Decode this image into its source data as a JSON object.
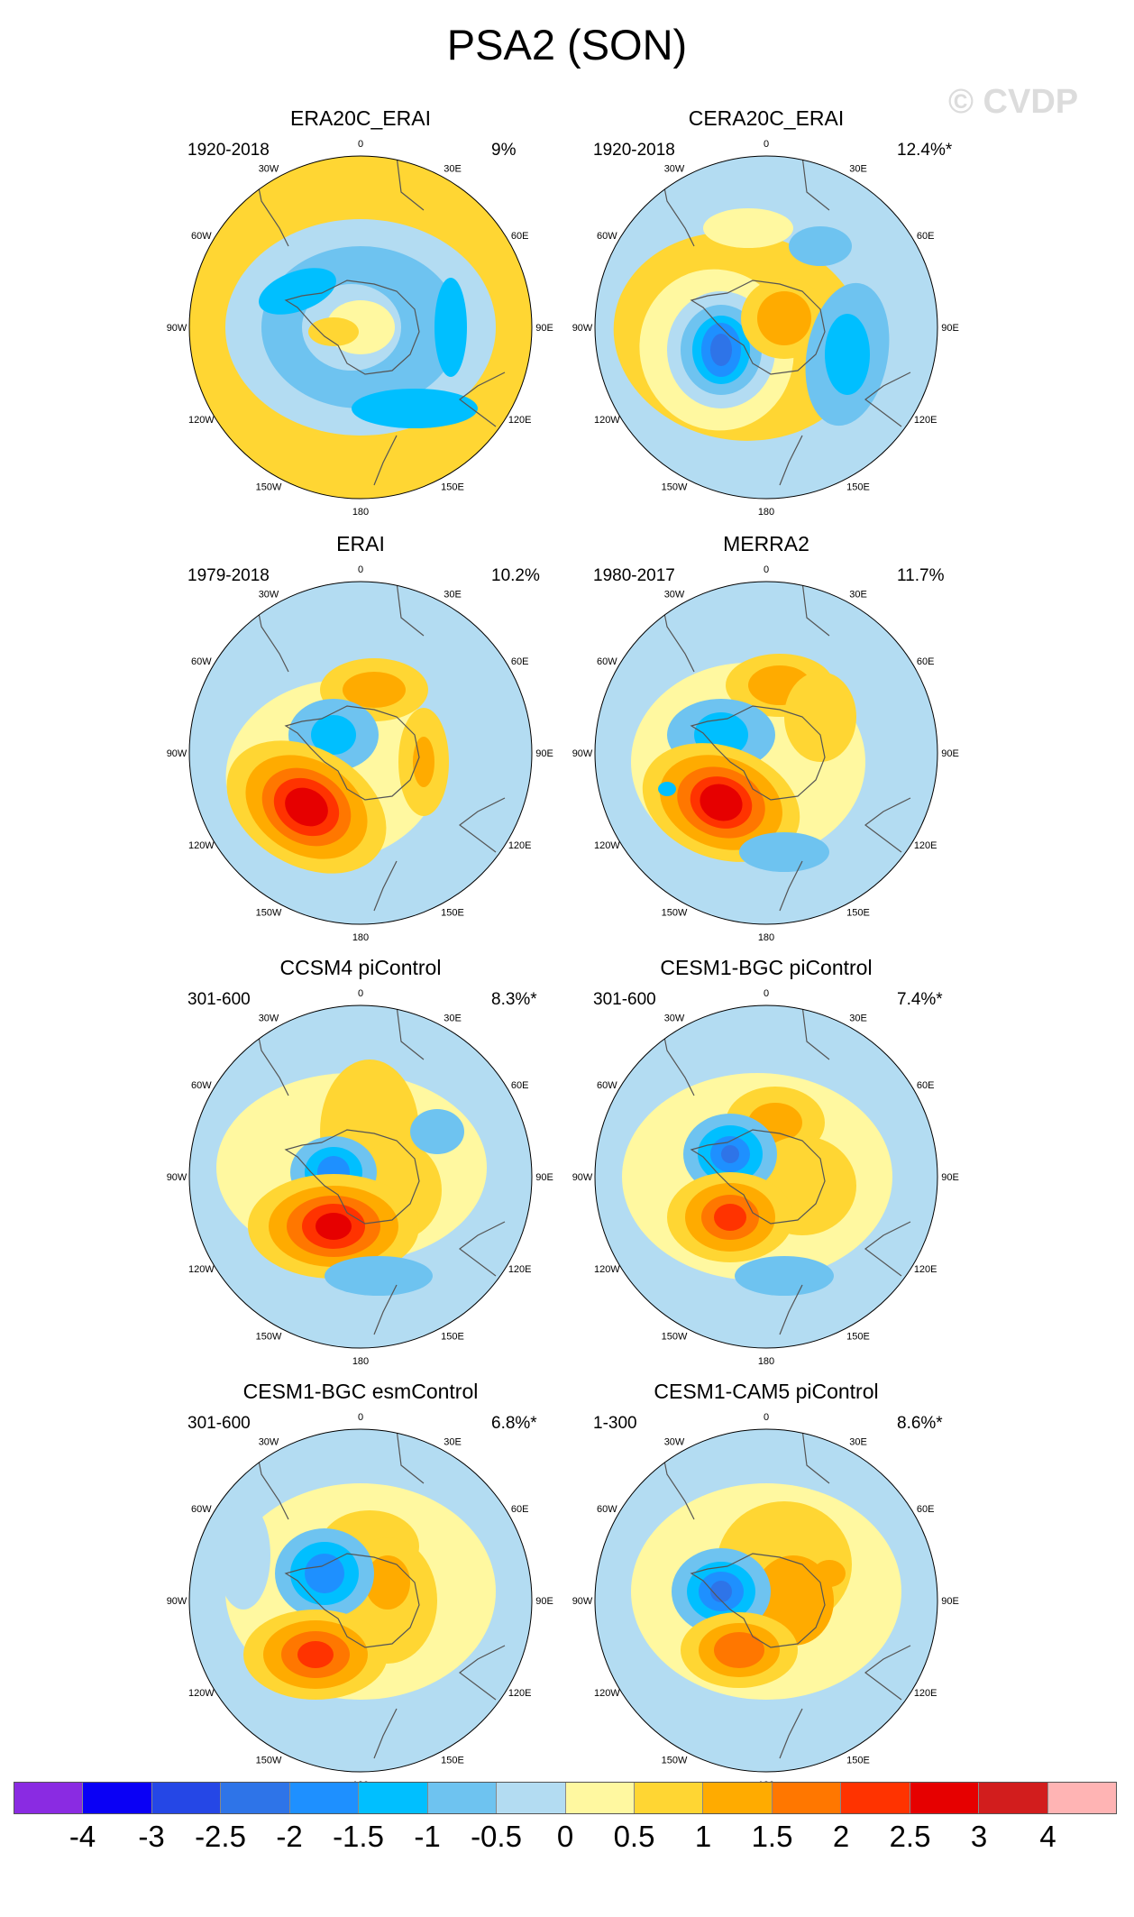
{
  "title": "PSA2 (SON)",
  "watermark": "© CVDP",
  "longitude_labels": [
    "0",
    "30E",
    "60E",
    "90E",
    "120E",
    "150E",
    "180",
    "150W",
    "120W",
    "90W",
    "60W",
    "30W"
  ],
  "colorbar": {
    "colors": [
      "#8a2be2",
      "#0a00f5",
      "#2547e6",
      "#2e74e8",
      "#1e90ff",
      "#00bfff",
      "#6ec3f0",
      "#b3dcf2",
      "#fff8a0",
      "#ffd633",
      "#ffab00",
      "#ff7700",
      "#ff3300",
      "#e60000",
      "#d21d1d",
      "#ffb4b4"
    ],
    "labels": [
      "-4",
      "-3",
      "-2.5",
      "-2",
      "-1.5",
      "-1",
      "-0.5",
      "0",
      "0.5",
      "1",
      "1.5",
      "2",
      "2.5",
      "3",
      "4"
    ]
  },
  "panels": [
    {
      "title": "ERA20C_ERAI",
      "period": "1920-2018",
      "pct": "9%",
      "bg": 1,
      "blobs": [
        [
          0,
          0,
          150,
          120,
          0,
          -1
        ],
        [
          0,
          0,
          110,
          90,
          0,
          -2
        ],
        [
          -10,
          0,
          55,
          48,
          0,
          -1
        ],
        [
          0,
          0,
          38,
          30,
          0,
          0
        ],
        [
          -30,
          5,
          28,
          16,
          0,
          1
        ],
        [
          -70,
          -40,
          45,
          22,
          -20,
          -3
        ],
        [
          60,
          90,
          70,
          22,
          0,
          -3
        ],
        [
          100,
          0,
          18,
          55,
          0,
          -3
        ]
      ]
    },
    {
      "title": "CERA20C_ERAI",
      "period": "1920-2018",
      "pct": "12.4%*",
      "bg": -1,
      "blobs": [
        [
          -30,
          10,
          140,
          115,
          10,
          1
        ],
        [
          -55,
          25,
          85,
          90,
          -20,
          0
        ],
        [
          -50,
          25,
          60,
          65,
          0,
          -1
        ],
        [
          -50,
          25,
          45,
          50,
          0,
          -2
        ],
        [
          -50,
          25,
          32,
          38,
          0,
          -3
        ],
        [
          -50,
          25,
          22,
          30,
          0,
          -4
        ],
        [
          -50,
          25,
          12,
          18,
          0,
          -5
        ],
        [
          20,
          -10,
          48,
          45,
          0,
          1
        ],
        [
          20,
          -10,
          30,
          30,
          0,
          2
        ],
        [
          90,
          30,
          45,
          80,
          10,
          -2
        ],
        [
          90,
          30,
          25,
          45,
          0,
          -3
        ],
        [
          -20,
          -110,
          50,
          22,
          0,
          0
        ],
        [
          60,
          -90,
          35,
          22,
          0,
          -2
        ]
      ]
    },
    {
      "title": "ERAI",
      "period": "1979-2018",
      "pct": "10.2%",
      "bg": -1,
      "blobs": [
        [
          -30,
          20,
          120,
          100,
          -10,
          0
        ],
        [
          15,
          -70,
          60,
          35,
          0,
          1
        ],
        [
          15,
          -70,
          35,
          20,
          0,
          2
        ],
        [
          -30,
          -20,
          50,
          40,
          0,
          -2
        ],
        [
          -30,
          -20,
          25,
          22,
          0,
          -3
        ],
        [
          -60,
          60,
          95,
          65,
          30,
          1
        ],
        [
          -60,
          60,
          72,
          52,
          30,
          2
        ],
        [
          -60,
          60,
          52,
          40,
          30,
          3
        ],
        [
          -60,
          60,
          38,
          30,
          30,
          4
        ],
        [
          -60,
          60,
          25,
          20,
          30,
          5
        ],
        [
          70,
          10,
          28,
          60,
          0,
          1
        ],
        [
          70,
          10,
          12,
          28,
          0,
          2
        ]
      ]
    },
    {
      "title": "MERRA2",
      "period": "1980-2017",
      "pct": "11.7%",
      "bg": -1,
      "blobs": [
        [
          -20,
          10,
          130,
          110,
          0,
          0
        ],
        [
          15,
          -75,
          60,
          35,
          0,
          1
        ],
        [
          15,
          -75,
          35,
          22,
          0,
          2
        ],
        [
          -50,
          -20,
          60,
          40,
          0,
          -2
        ],
        [
          -50,
          -20,
          30,
          25,
          0,
          -3
        ],
        [
          -50,
          55,
          90,
          62,
          20,
          1
        ],
        [
          -50,
          55,
          70,
          50,
          20,
          2
        ],
        [
          -50,
          55,
          50,
          38,
          20,
          3
        ],
        [
          -50,
          55,
          35,
          28,
          20,
          4
        ],
        [
          -50,
          55,
          24,
          20,
          20,
          5
        ],
        [
          60,
          -40,
          40,
          50,
          0,
          1
        ],
        [
          20,
          110,
          50,
          22,
          0,
          -2
        ],
        [
          -110,
          40,
          10,
          8,
          0,
          -3
        ]
      ]
    },
    {
      "title": "CCSM4 piControl",
      "period": "301-600",
      "pct": "8.3%*",
      "bg": -1,
      "blobs": [
        [
          -10,
          -10,
          150,
          105,
          0,
          0
        ],
        [
          10,
          -50,
          55,
          80,
          0,
          1
        ],
        [
          40,
          15,
          50,
          55,
          0,
          1
        ],
        [
          -30,
          -5,
          48,
          40,
          0,
          -2
        ],
        [
          -30,
          -5,
          32,
          28,
          0,
          -3
        ],
        [
          -30,
          -5,
          18,
          18,
          0,
          -4
        ],
        [
          -30,
          55,
          95,
          58,
          0,
          1
        ],
        [
          -30,
          55,
          72,
          45,
          0,
          2
        ],
        [
          -30,
          55,
          52,
          34,
          0,
          3
        ],
        [
          -30,
          55,
          35,
          25,
          0,
          4
        ],
        [
          -30,
          55,
          20,
          15,
          0,
          5
        ],
        [
          85,
          -50,
          30,
          25,
          0,
          -2
        ],
        [
          20,
          110,
          60,
          22,
          0,
          -2
        ]
      ]
    },
    {
      "title": "CESM1-BGC piControl",
      "period": "301-600",
      "pct": "7.4%*",
      "bg": -1,
      "blobs": [
        [
          -10,
          0,
          150,
          115,
          0,
          0
        ],
        [
          10,
          -60,
          55,
          40,
          0,
          1
        ],
        [
          10,
          -60,
          30,
          22,
          0,
          2
        ],
        [
          40,
          10,
          60,
          55,
          0,
          1
        ],
        [
          -40,
          -25,
          52,
          45,
          0,
          -2
        ],
        [
          -40,
          -25,
          36,
          32,
          0,
          -3
        ],
        [
          -40,
          -25,
          22,
          20,
          0,
          -4
        ],
        [
          -40,
          -25,
          10,
          10,
          0,
          -5
        ],
        [
          -40,
          45,
          70,
          50,
          0,
          1
        ],
        [
          -40,
          45,
          50,
          38,
          0,
          2
        ],
        [
          -40,
          45,
          32,
          25,
          0,
          3
        ],
        [
          -40,
          45,
          18,
          15,
          0,
          4
        ],
        [
          20,
          110,
          55,
          22,
          0,
          -2
        ]
      ]
    },
    {
      "title": "CESM1-BGC esmControl",
      "period": "301-600",
      "pct": "6.8%*",
      "bg": -1,
      "blobs": [
        [
          0,
          -10,
          150,
          120,
          0,
          0
        ],
        [
          10,
          -60,
          55,
          40,
          0,
          1
        ],
        [
          30,
          0,
          55,
          70,
          0,
          1
        ],
        [
          30,
          -20,
          25,
          30,
          0,
          2
        ],
        [
          -40,
          -30,
          55,
          50,
          0,
          -2
        ],
        [
          -40,
          -30,
          38,
          35,
          0,
          -3
        ],
        [
          -40,
          -30,
          22,
          22,
          0,
          -4
        ],
        [
          -50,
          60,
          80,
          50,
          0,
          1
        ],
        [
          -50,
          60,
          58,
          38,
          0,
          2
        ],
        [
          -50,
          60,
          38,
          26,
          0,
          3
        ],
        [
          -50,
          60,
          20,
          15,
          0,
          4
        ],
        [
          -130,
          -50,
          30,
          60,
          0,
          -1
        ]
      ]
    },
    {
      "title": "CESM1-CAM5 piControl",
      "period": "1-300",
      "pct": "8.6%*",
      "bg": -1,
      "blobs": [
        [
          0,
          -10,
          150,
          120,
          0,
          0
        ],
        [
          20,
          -40,
          75,
          70,
          0,
          1
        ],
        [
          30,
          0,
          45,
          50,
          0,
          2
        ],
        [
          70,
          -30,
          18,
          15,
          0,
          2
        ],
        [
          -50,
          -10,
          55,
          48,
          0,
          -2
        ],
        [
          -50,
          -10,
          38,
          33,
          0,
          -3
        ],
        [
          -50,
          -10,
          25,
          22,
          0,
          -4
        ],
        [
          -50,
          -10,
          12,
          12,
          0,
          -5
        ],
        [
          -30,
          55,
          65,
          42,
          0,
          1
        ],
        [
          -30,
          55,
          45,
          30,
          0,
          2
        ],
        [
          -30,
          55,
          28,
          20,
          0,
          3
        ]
      ]
    }
  ]
}
